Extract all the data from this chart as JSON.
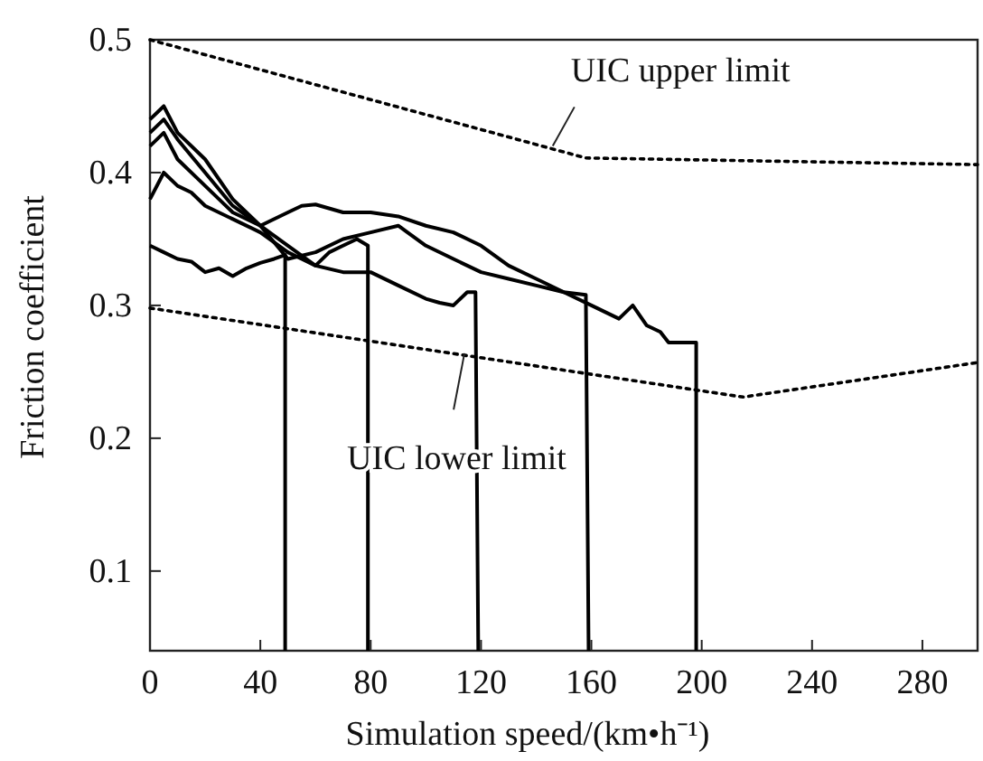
{
  "chart_data": {
    "type": "line",
    "xlabel": "Simulation speed/(km•h⁻¹)",
    "ylabel": "Friction coefficient",
    "xlim": [
      0,
      300
    ],
    "ylim": [
      0.04,
      0.5
    ],
    "xticks": [
      0,
      40,
      80,
      120,
      160,
      200,
      240,
      280
    ],
    "yticks": [
      0.1,
      0.2,
      0.3,
      0.4,
      0.5
    ],
    "marker": "none",
    "series": [
      {
        "color": "#000000",
        "line_style": "solid",
        "x": [
          0,
          5,
          10,
          15,
          20,
          25,
          30,
          35,
          40,
          45,
          49,
          49
        ],
        "values": [
          0.345,
          0.34,
          0.335,
          0.333,
          0.325,
          0.328,
          0.322,
          0.328,
          0.332,
          0.335,
          0.338,
          0.04
        ]
      },
      {
        "color": "#000000",
        "line_style": "solid",
        "x": [
          0,
          5,
          10,
          15,
          20,
          30,
          40,
          50,
          55,
          60,
          65,
          70,
          75,
          79,
          79
        ],
        "values": [
          0.38,
          0.4,
          0.39,
          0.385,
          0.375,
          0.365,
          0.355,
          0.34,
          0.335,
          0.33,
          0.34,
          0.345,
          0.35,
          0.345,
          0.04
        ]
      },
      {
        "color": "#000000",
        "line_style": "solid",
        "x": [
          0,
          5,
          10,
          20,
          30,
          40,
          50,
          60,
          70,
          80,
          90,
          100,
          105,
          110,
          115,
          118,
          119
        ],
        "values": [
          0.42,
          0.43,
          0.41,
          0.39,
          0.37,
          0.36,
          0.345,
          0.33,
          0.325,
          0.325,
          0.315,
          0.305,
          0.302,
          0.3,
          0.31,
          0.31,
          0.04
        ]
      },
      {
        "color": "#000000",
        "line_style": "solid",
        "x": [
          0,
          5,
          10,
          20,
          30,
          40,
          50,
          60,
          70,
          80,
          90,
          100,
          110,
          120,
          130,
          140,
          150,
          158,
          159
        ],
        "values": [
          0.43,
          0.44,
          0.425,
          0.4,
          0.375,
          0.36,
          0.335,
          0.34,
          0.35,
          0.355,
          0.36,
          0.345,
          0.335,
          0.325,
          0.32,
          0.315,
          0.31,
          0.308,
          0.04
        ]
      },
      {
        "color": "#000000",
        "line_style": "solid",
        "x": [
          0,
          5,
          10,
          20,
          30,
          40,
          50,
          55,
          60,
          70,
          80,
          90,
          100,
          110,
          120,
          130,
          140,
          150,
          160,
          170,
          175,
          180,
          185,
          188,
          198,
          198
        ],
        "values": [
          0.44,
          0.45,
          0.43,
          0.41,
          0.38,
          0.36,
          0.37,
          0.375,
          0.376,
          0.37,
          0.37,
          0.367,
          0.36,
          0.355,
          0.345,
          0.33,
          0.32,
          0.31,
          0.3,
          0.29,
          0.3,
          0.285,
          0.28,
          0.272,
          0.272,
          0.04
        ]
      },
      {
        "color": "#000000",
        "line_style": "dotted",
        "x": [
          0,
          158,
          300
        ],
        "values": [
          0.5,
          0.411,
          0.406
        ]
      },
      {
        "color": "#000000",
        "line_style": "dotted",
        "x": [
          0,
          215,
          300
        ],
        "values": [
          0.298,
          0.231,
          0.257
        ]
      }
    ],
    "annotations": [
      {
        "text": "UIC upper limit",
        "x": 146,
        "y": 0.42
      },
      {
        "text": "UIC lower limit",
        "x": 114,
        "y": 0.264
      }
    ]
  }
}
